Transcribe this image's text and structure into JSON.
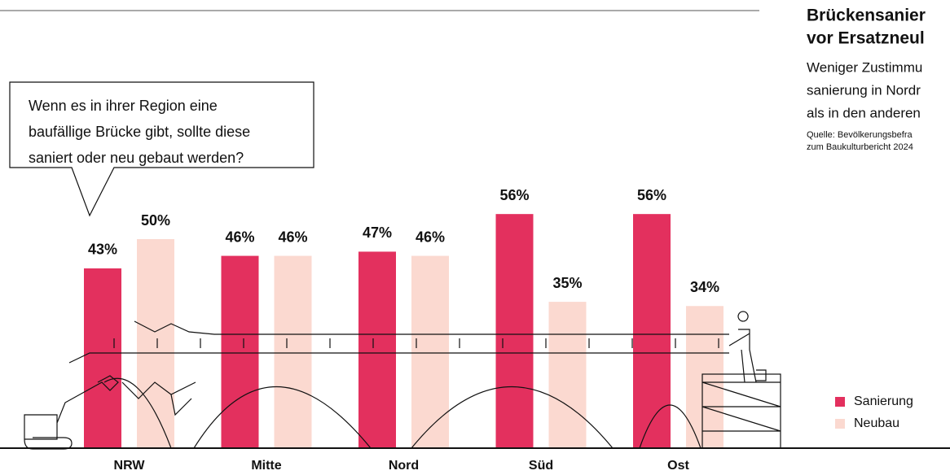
{
  "chart_data": {
    "type": "bar",
    "title_lines": [
      "Brückensanier",
      "vor Ersatzneul"
    ],
    "subtitle_lines": [
      "Weniger Zustimmu",
      "sanierung in Nordr",
      "als in den anderen"
    ],
    "source_lines": [
      "Quelle: Bevölkerungsbefra",
      "zum Baukulturbericht 2024"
    ],
    "question_lines": [
      "Wenn es in ihrer Region eine",
      "baufällige Brücke gibt, sollte diese",
      "saniert oder neu gebaut werden?"
    ],
    "categories": [
      "NRW",
      "Mitte",
      "Nord",
      "Süd",
      "Ost"
    ],
    "series": [
      {
        "name": "Sanierung",
        "color": "#e3305e",
        "values": [
          43,
          46,
          47,
          56,
          56
        ],
        "value_labels": [
          "43%",
          "46%",
          "47%",
          "56%",
          "56%"
        ]
      },
      {
        "name": "Neubau",
        "color": "#fbd9d0",
        "values": [
          50,
          46,
          46,
          35,
          34
        ],
        "value_labels": [
          "50%",
          "46%",
          "46%",
          "35%",
          "34%"
        ]
      }
    ]
  }
}
